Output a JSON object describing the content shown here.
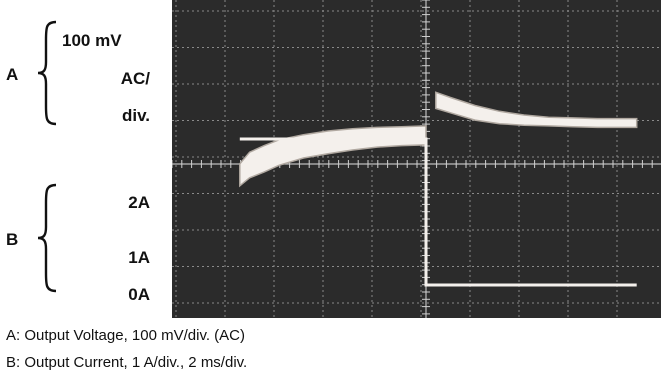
{
  "labels": {
    "a": {
      "letter": "A",
      "line1": "100 mV",
      "line2": "AC/",
      "line3": "div."
    },
    "b": {
      "letter": "B",
      "top": "2A",
      "mid": "1A",
      "bottom": "0A"
    }
  },
  "captions": [
    "A: Output Voltage, 100 mV/div. (AC)",
    "B: Output Current, 1 A/div., 2 ms/div."
  ],
  "colors": {
    "screen_bg": "#2b2b2b",
    "grid": "#8a8a8a",
    "trace": "#f4f0ec",
    "trace_edge": "#b0a8a0"
  },
  "chart_data": {
    "type": "oscilloscope",
    "divisions": {
      "x": 10,
      "y": 8
    },
    "time_per_div": "2 ms/div.",
    "series": [
      {
        "name": "A: Output Voltage, 100 mV/div. (AC)",
        "units": "mV (AC)",
        "x_ms": [
          -7.6,
          -7.2,
          -6.6,
          -6.0,
          -5.0,
          -4.0,
          -3.0,
          -2.0,
          -1.0,
          0.0,
          0.4,
          1.0,
          2.0,
          3.0,
          4.0,
          5.0,
          6.0,
          7.0,
          8.0,
          8.6
        ],
        "upper_mv": [
          -112,
          -80,
          -62,
          -46,
          -32,
          -22,
          -16,
          -12,
          -10,
          -8,
          84,
          70,
          48,
          32,
          22,
          16,
          14,
          12,
          12,
          12
        ],
        "lower_mv": [
          -172,
          -150,
          -134,
          -116,
          -96,
          -84,
          -74,
          -66,
          -62,
          -60,
          40,
          28,
          8,
          -2,
          -6,
          -8,
          -10,
          -12,
          -12,
          -12
        ]
      },
      {
        "name": "B: Output Current, 1 A/div.",
        "units": "A",
        "x_ms": [
          -7.6,
          0.0,
          0.0,
          8.6
        ],
        "y": [
          2.0,
          2.0,
          0.0,
          0.0
        ]
      }
    ]
  }
}
